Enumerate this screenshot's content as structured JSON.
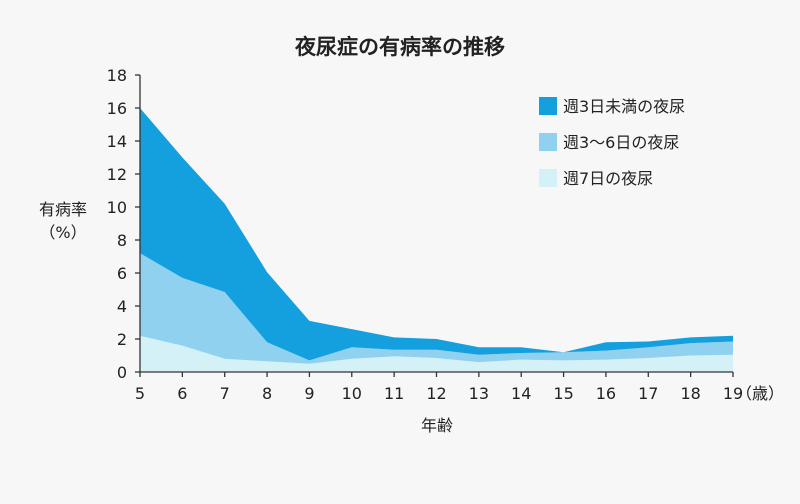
{
  "chart_data": {
    "type": "area",
    "stacked": true,
    "title": "夜尿症の有病率の推移",
    "ylabel_line1": "有病率",
    "ylabel_line2": "（%）",
    "xlabel": "年齢",
    "x_unit": "（歳）",
    "x": [
      5,
      6,
      7,
      8,
      9,
      10,
      11,
      12,
      13,
      14,
      15,
      16,
      17,
      18,
      19
    ],
    "ylim": [
      0,
      18
    ],
    "yticks": [
      0,
      2,
      4,
      6,
      8,
      10,
      12,
      14,
      16,
      18
    ],
    "series": [
      {
        "name": "週7日の夜尿",
        "color": "#d3f1f7",
        "values": [
          2.2,
          1.6,
          0.8,
          0.65,
          0.5,
          0.8,
          0.95,
          0.85,
          0.6,
          0.75,
          0.7,
          0.75,
          0.85,
          1.0,
          1.05
        ]
      },
      {
        "name": "週3〜6日の夜尿",
        "color": "#8fd1ef",
        "values": [
          5.0,
          4.1,
          4.05,
          1.15,
          0.2,
          0.7,
          0.4,
          0.5,
          0.45,
          0.4,
          0.5,
          0.55,
          0.65,
          0.75,
          0.8
        ]
      },
      {
        "name": "週3日未満の夜尿",
        "color": "#149fdf",
        "values": [
          8.8,
          7.3,
          5.35,
          4.25,
          2.4,
          1.1,
          0.75,
          0.65,
          0.45,
          0.35,
          0.0,
          0.5,
          0.35,
          0.35,
          0.35
        ]
      }
    ],
    "legend": [
      {
        "label": "週3日未満の夜尿",
        "color": "#149fdf"
      },
      {
        "label": "週3〜6日の夜尿",
        "color": "#8fd1ef"
      },
      {
        "label": "週7日の夜尿",
        "color": "#d3f1f7"
      }
    ],
    "legend_position": "top-right",
    "grid": false
  }
}
